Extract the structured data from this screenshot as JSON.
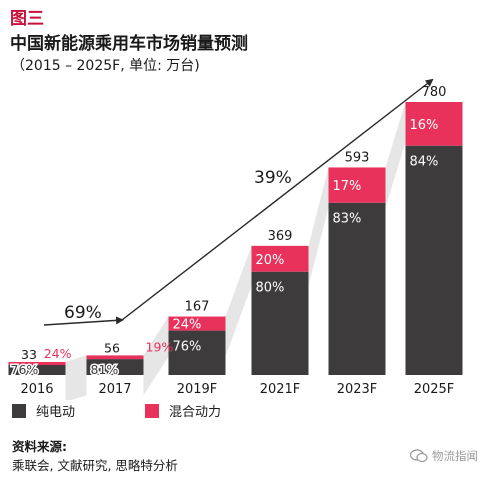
{
  "figure_label": "图三",
  "title": "中国新能源乘用车市场销量预测",
  "subtitle": "（2015 – 2025F, 单位: 万台)",
  "colors": {
    "ev": "#3d3b3c",
    "phev": "#e8325c",
    "arrow": "#2a2a2a",
    "shadow": "#e6e6e6",
    "accent": "#c8103a"
  },
  "chart_data": {
    "type": "bar",
    "stacked": true,
    "categories": [
      "2016",
      "2017",
      "2019F",
      "2021F",
      "2023F",
      "2025F"
    ],
    "totals": [
      "33",
      "56",
      "167",
      "369",
      "593",
      "780"
    ],
    "series": [
      {
        "name": "纯电动",
        "values": [
          25.1,
          45.4,
          126.9,
          295.2,
          492.2,
          655.2
        ],
        "pct_labels": [
          "76%",
          "81%",
          "76%",
          "80%",
          "83%",
          "84%"
        ]
      },
      {
        "name": "混合动力",
        "values": [
          7.9,
          10.6,
          40.1,
          73.8,
          100.8,
          124.8
        ],
        "pct_labels": [
          "24%",
          "19%",
          "24%",
          "20%",
          "17%",
          "16%"
        ]
      }
    ],
    "ylim": [
      0,
      800
    ],
    "annotations": [
      {
        "text": "69%",
        "from": "2016",
        "to": "2017"
      },
      {
        "text": "39%",
        "from": "2017",
        "to": "2025F"
      }
    ],
    "legend_position": "bottom-left"
  },
  "source_title": "资料来源:",
  "source_text": "乘联会, 文献研究, 思略特分析",
  "watermark": "物流指闻",
  "watermark_icon": "wechat-icon"
}
